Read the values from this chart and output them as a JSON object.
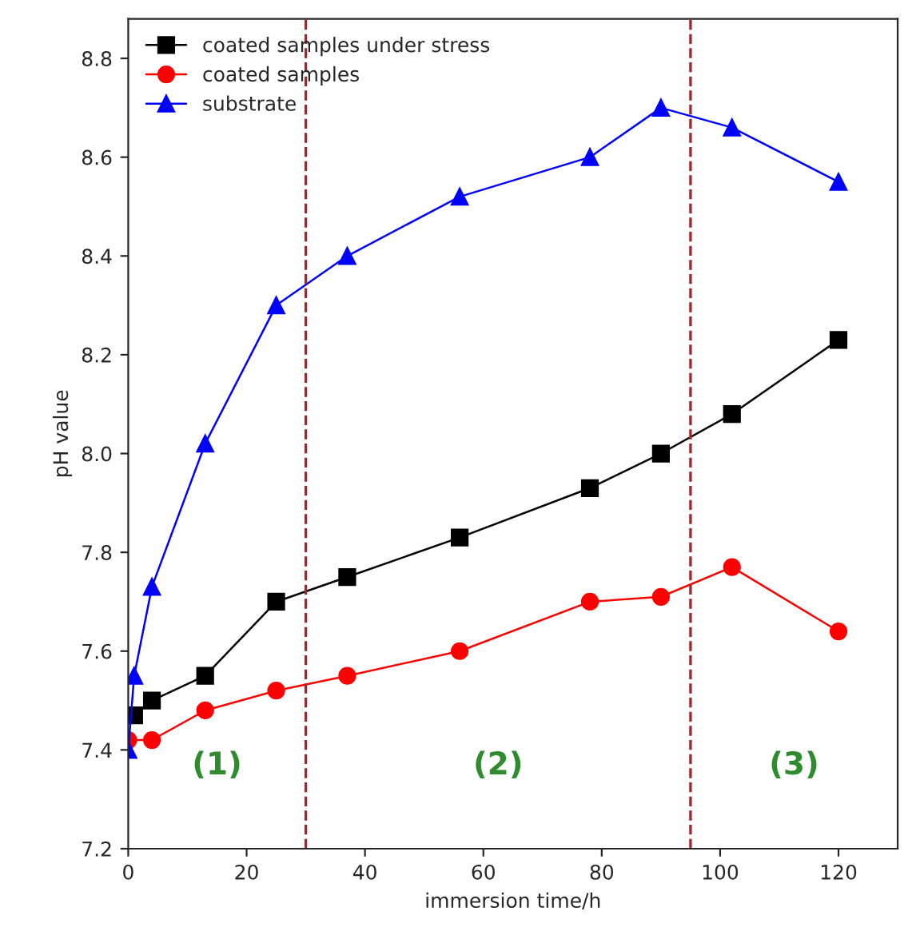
{
  "chart_data": {
    "type": "line",
    "xlabel": "immersion time/h",
    "ylabel": "pH value",
    "series": [
      {
        "name": "coated samples under stress",
        "color": "#000000",
        "marker": "square",
        "x": [
          1,
          4,
          13,
          25,
          37,
          56,
          78,
          90,
          102,
          120
        ],
        "values": [
          7.47,
          7.5,
          7.55,
          7.7,
          7.75,
          7.83,
          7.93,
          8.0,
          8.08,
          8.23
        ]
      },
      {
        "name": "coated samples",
        "color": "#ff0000",
        "marker": "circle",
        "x": [
          0,
          4,
          13,
          25,
          37,
          56,
          78,
          90,
          102,
          120
        ],
        "values": [
          7.42,
          7.42,
          7.48,
          7.52,
          7.55,
          7.6,
          7.7,
          7.71,
          7.77,
          7.64
        ]
      },
      {
        "name": "substrate",
        "color": "#0000ff",
        "marker": "triangle",
        "x": [
          0,
          1,
          4,
          13,
          25,
          37,
          56,
          78,
          90,
          102,
          120
        ],
        "values": [
          7.4,
          7.55,
          7.73,
          8.02,
          8.3,
          8.4,
          8.52,
          8.6,
          8.7,
          8.66,
          8.55
        ]
      }
    ],
    "xlim": [
      0,
      130
    ],
    "xticks": [
      0,
      20,
      40,
      60,
      80,
      100,
      120
    ],
    "ylim": [
      7.2,
      8.88
    ],
    "yticks": [
      {
        "value": 7.2,
        "label": "7.2"
      },
      {
        "value": 7.4,
        "label": "7.4"
      },
      {
        "value": 7.6,
        "label": "7.6"
      },
      {
        "value": 7.8,
        "label": "7.8"
      },
      {
        "value": 8.0,
        "label": "8.0"
      },
      {
        "value": 8.2,
        "label": "8.2"
      },
      {
        "value": 8.4,
        "label": "8.4"
      },
      {
        "value": 8.6,
        "label": "8.6"
      },
      {
        "value": 8.8,
        "label": "8.8"
      }
    ],
    "ref_lines": [
      {
        "axis": "x",
        "value": 30,
        "color": "#a0282d",
        "line_style": "dashed"
      },
      {
        "axis": "x",
        "value": 95,
        "color": "#a0282d",
        "line_style": "dashed"
      }
    ],
    "annotations": [
      "(1)",
      "(2)",
      "(3)"
    ],
    "legend": "top left",
    "grid": false
  }
}
